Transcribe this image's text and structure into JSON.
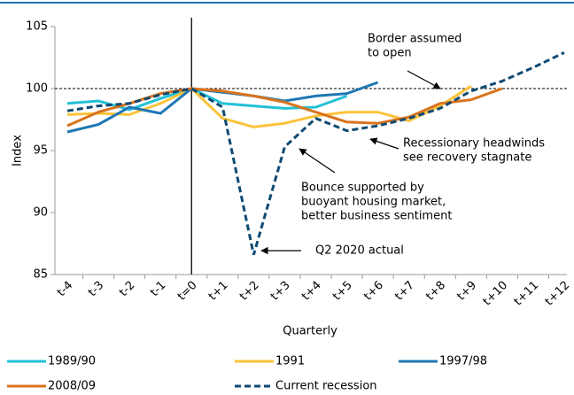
{
  "chart_data": {
    "type": "line",
    "xlabel": "Quarterly",
    "ylabel": "Index",
    "categories": [
      "t-4",
      "t-3",
      "t-2",
      "t-1",
      "t=0",
      "t+1",
      "t+2",
      "t+3",
      "t+4",
      "t+5",
      "t+6",
      "t+7",
      "t+8",
      "t+9",
      "t+10",
      "t+11",
      "t+12"
    ],
    "ylim": [
      85,
      105
    ],
    "yticks": [
      85,
      90,
      95,
      100,
      105
    ],
    "reference_line": 100,
    "series": [
      {
        "name": "1989/90",
        "color": "#21c1d6",
        "values": [
          98.8,
          99.0,
          98.3,
          99.2,
          100,
          98.8,
          98.6,
          98.4,
          98.5,
          99.4,
          null,
          null,
          null,
          null,
          null,
          null,
          null
        ]
      },
      {
        "name": "1991",
        "color": "#fcc33a",
        "values": [
          97.9,
          98.0,
          97.9,
          98.8,
          100,
          97.6,
          96.9,
          97.2,
          97.8,
          98.1,
          98.1,
          97.4,
          98.6,
          100.2,
          null,
          null,
          null
        ]
      },
      {
        "name": "1997/98",
        "color": "#1f77b4",
        "values": [
          96.5,
          97.1,
          98.5,
          98.0,
          100,
          99.7,
          99.4,
          99.0,
          99.4,
          99.6,
          100.5,
          null,
          null,
          null,
          null,
          null,
          null
        ]
      },
      {
        "name": "2008/09",
        "color": "#d9731c",
        "values": [
          97.0,
          98.1,
          98.8,
          99.6,
          100,
          99.8,
          99.4,
          98.9,
          98.1,
          97.3,
          97.2,
          97.7,
          98.8,
          99.1,
          100.0,
          null,
          null
        ]
      },
      {
        "name": "Current recession",
        "color": "#0f4a73",
        "dashed": true,
        "values": [
          98.2,
          98.6,
          98.8,
          99.5,
          100,
          98.5,
          86.6,
          95.3,
          97.6,
          96.6,
          97.0,
          97.6,
          98.4,
          99.8,
          100.6,
          101.7,
          102.9
        ]
      }
    ],
    "annotations": [
      {
        "lines": [
          "Border assumed",
          "to open"
        ]
      },
      {
        "lines": [
          "Recessionary headwinds",
          "see recovery stagnate"
        ]
      },
      {
        "lines": [
          "Bounce supported by",
          "buoyant housing market,",
          "better business sentiment"
        ]
      },
      {
        "lines": [
          "Q2 2020 actual"
        ]
      }
    ]
  }
}
